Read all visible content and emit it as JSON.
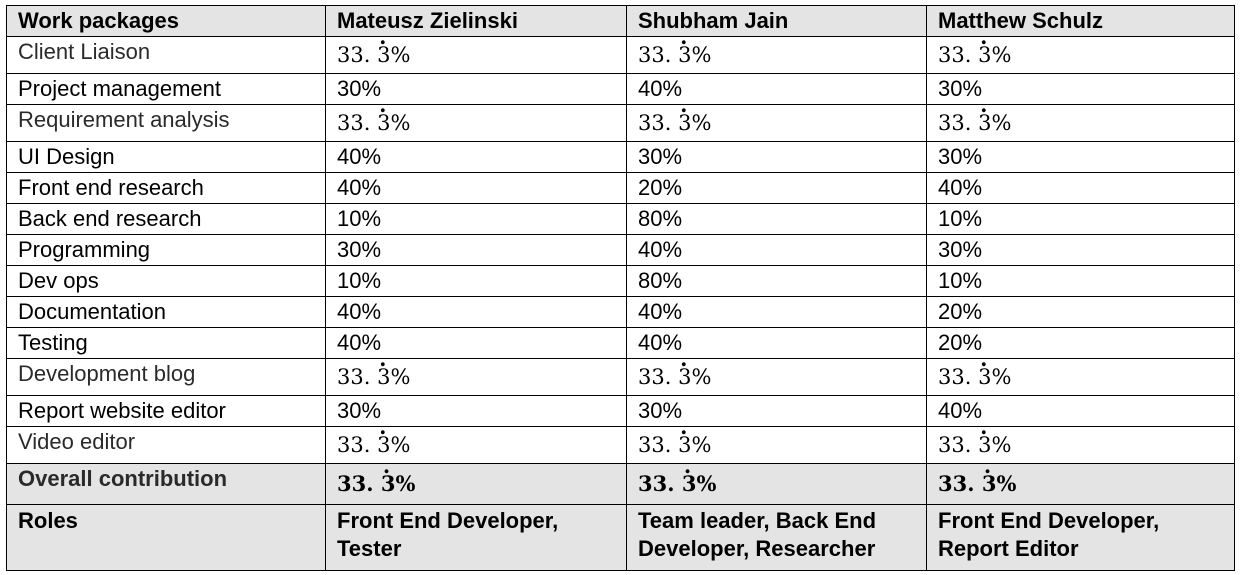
{
  "table": {
    "headers": [
      "Work packages",
      "Mateusz Zielinski",
      "Shubham Jain",
      "Matthew Schulz"
    ],
    "rows": [
      {
        "label": "Client Liaison",
        "values": [
          "33.3%",
          "33.3%",
          "33.3%"
        ],
        "math": true
      },
      {
        "label": "Project management",
        "values": [
          "30%",
          "40%",
          "30%"
        ],
        "math": false
      },
      {
        "label": "Requirement analysis",
        "values": [
          "33.3%",
          "33.3%",
          "33.3%"
        ],
        "math": true
      },
      {
        "label": "UI Design",
        "values": [
          "40%",
          "30%",
          "30%"
        ],
        "math": false
      },
      {
        "label": "Front end research",
        "values": [
          "40%",
          "20%",
          "40%"
        ],
        "math": false
      },
      {
        "label": "Back end research",
        "values": [
          "10%",
          "80%",
          "10%"
        ],
        "math": false
      },
      {
        "label": "Programming",
        "values": [
          "30%",
          "40%",
          "30%"
        ],
        "math": false
      },
      {
        "label": "Dev ops",
        "values": [
          "10%",
          "80%",
          "10%"
        ],
        "math": false
      },
      {
        "label": "Documentation",
        "values": [
          "40%",
          "40%",
          "20%"
        ],
        "math": false
      },
      {
        "label": "Testing",
        "values": [
          "40%",
          "40%",
          "20%"
        ],
        "math": false
      },
      {
        "label": "Development blog",
        "values": [
          "33.3%",
          "33.3%",
          "33.3%"
        ],
        "math": true
      },
      {
        "label": "Report website editor",
        "values": [
          "30%",
          "30%",
          "40%"
        ],
        "math": false
      },
      {
        "label": "Video editor",
        "values": [
          "33.3%",
          "33.3%",
          "33.3%"
        ],
        "math": true
      }
    ],
    "overall": {
      "label": "Overall contribution",
      "values": [
        "33.3%",
        "33.3%",
        "33.3%"
      ]
    },
    "roles": {
      "label": "Roles",
      "values": [
        "Front End Developer, Tester",
        "Team leader, Back End Developer, Researcher",
        "Front End Developer, Report Editor"
      ]
    }
  }
}
